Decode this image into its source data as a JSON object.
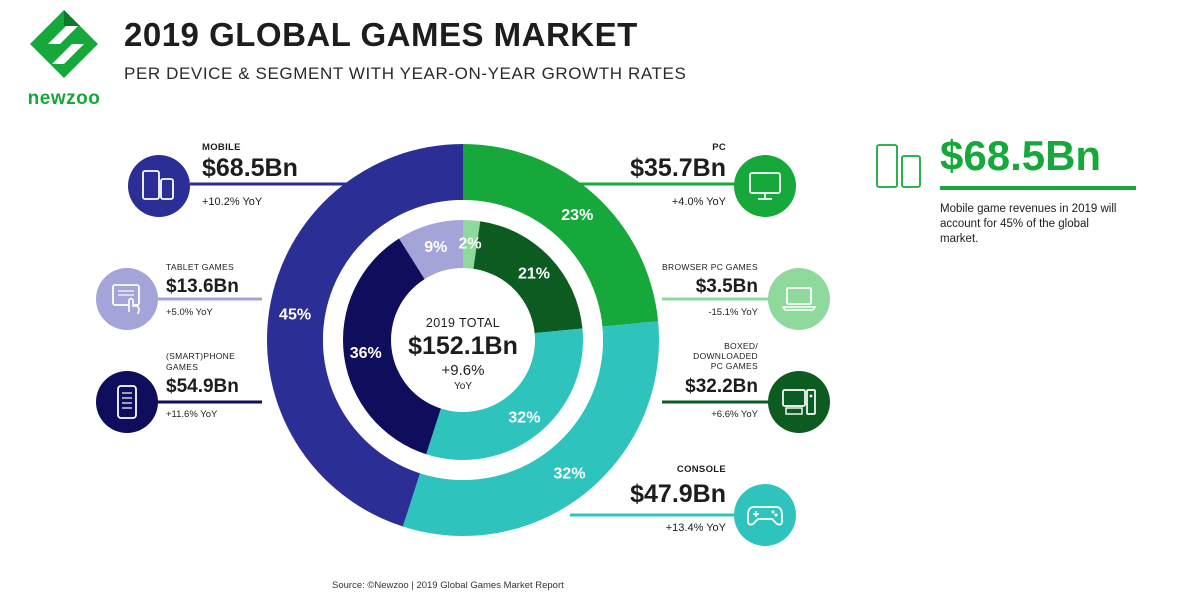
{
  "brand": {
    "name": "newzoo"
  },
  "header": {
    "title": "2019 GLOBAL GAMES MARKET",
    "subtitle": "PER DEVICE & SEGMENT WITH YEAR-ON-YEAR GROWTH RATES"
  },
  "labels": {
    "mobile": {
      "name": "MOBILE",
      "value": "$68.5Bn",
      "yoy": "+10.2% YoY"
    },
    "tablet": {
      "name": "TABLET GAMES",
      "value": "$13.6Bn",
      "yoy": "+5.0% YoY"
    },
    "phone": {
      "name_line1": "(SMART)PHONE",
      "name_line2": "GAMES",
      "value": "$54.9Bn",
      "yoy": "+11.6% YoY"
    },
    "pc": {
      "name": "PC",
      "value": "$35.7Bn",
      "yoy": "+4.0% YoY"
    },
    "browser": {
      "name": "BROWSER PC GAMES",
      "value": "$3.5Bn",
      "yoy": "-15.1% YoY"
    },
    "boxed": {
      "name_line1": "BOXED/",
      "name_line2": "DOWNLOADED",
      "name_line3": "PC GAMES",
      "value": "$32.2Bn",
      "yoy": "+6.6% YoY"
    },
    "console": {
      "name": "CONSOLE",
      "value": "$47.9Bn",
      "yoy": "+13.4% YoY"
    }
  },
  "center": {
    "label": "2019 TOTAL",
    "value": "$152.1Bn",
    "growth": "+9.6%",
    "growth_unit": "YoY"
  },
  "callout": {
    "value": "$68.5Bn",
    "text": "Mobile game revenues in 2019 will account for 45% of the global market."
  },
  "source": "Source: ©Newzoo | 2019 Global Games Market Report",
  "icons": {
    "mobile": "devices-icon",
    "tablet": "tablet-touch-icon",
    "phone": "smartphone-icon",
    "pc": "monitor-icon",
    "browser": "laptop-icon",
    "boxed": "desktop-tower-icon",
    "console": "gamepad-icon",
    "callout": "devices-icon"
  },
  "chart_data": {
    "type": "pie",
    "total": 152.1,
    "unit": "$Bn",
    "outer_ring": [
      {
        "name": "PC",
        "value": 35.7,
        "share_label": "23%",
        "color": "#16a83a"
      },
      {
        "name": "CONSOLE",
        "value": 47.9,
        "share_label": "32%",
        "color": "#2ec4bd"
      },
      {
        "name": "MOBILE",
        "value": 68.5,
        "share_label": "45%",
        "color": "#2b2f95"
      }
    ],
    "inner_ring": [
      {
        "name": "BROWSER PC GAMES",
        "value": 3.5,
        "share_label": "2%",
        "color": "#8ed99b"
      },
      {
        "name": "BOXED/DOWNLOADED PC GAMES",
        "value": 32.2,
        "share_label": "21%",
        "color": "#0c5c22"
      },
      {
        "name": "CONSOLE",
        "value": 47.9,
        "share_label": "32%",
        "color": "#2ec4bd"
      },
      {
        "name": "(SMART)PHONE GAMES",
        "value": 54.9,
        "share_label": "36%",
        "color": "#0e0e5c"
      },
      {
        "name": "TABLET GAMES",
        "value": 13.6,
        "share_label": "9%",
        "color": "#a5a4d9"
      }
    ]
  }
}
